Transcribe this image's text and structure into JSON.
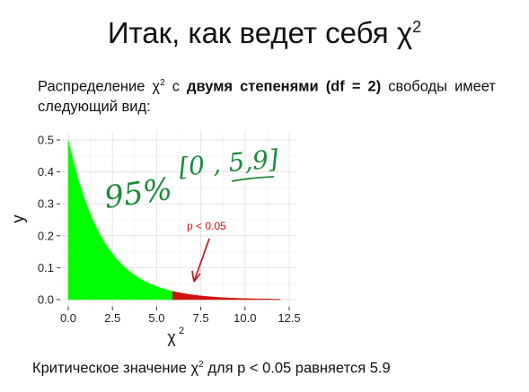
{
  "slide": {
    "title_main": "Итак, как ведет себя χ",
    "title_sup": "2",
    "para": {
      "t1": "Распределение χ",
      "sup": "2",
      "t2": " с ",
      "bold1": "двумя степенями (df  = 2)",
      "t3": " свободы имеет следующий вид:"
    },
    "footer": {
      "t1": "Критическое значение χ",
      "sup": "2",
      "t2": " для p < 0.05 равняется 5.9"
    }
  },
  "chart_data": {
    "type": "area",
    "xlabel": "χ",
    "xlabel_sup": "2",
    "ylabel": "y",
    "xlim": [
      0,
      12.5
    ],
    "ylim": [
      0,
      0.5
    ],
    "x_ticks": [
      0.0,
      2.5,
      5.0,
      7.5,
      10.0,
      12.5
    ],
    "x_tick_labels": [
      "0.0",
      "2.5",
      "5.0",
      "7.5",
      "10.0",
      "12.5"
    ],
    "y_ticks": [
      0.0,
      0.1,
      0.2,
      0.3,
      0.4,
      0.5
    ],
    "y_tick_labels": [
      "0.0",
      "0.1",
      "0.2",
      "0.3",
      "0.4",
      "0.5"
    ],
    "density": "chi-square, df = 2: y = 0.5·exp(−x/2)",
    "x": [
      0,
      1,
      2,
      3,
      4,
      5,
      5.9,
      6,
      7,
      8,
      9,
      10,
      11,
      12
    ],
    "y": [
      0.5,
      0.303,
      0.184,
      0.112,
      0.068,
      0.041,
      0.026,
      0.025,
      0.015,
      0.009,
      0.006,
      0.003,
      0.002,
      0.001
    ],
    "series": [
      {
        "name": "",
        "from": 0,
        "to": 5.9,
        "color": "#00ff00"
      },
      {
        "name": "",
        "from": 5.9,
        "to": 12.0,
        "color": "#cc1111"
      }
    ],
    "annotations": {
      "p_label": "p < 0.05",
      "handwriting_pct": "95%",
      "handwriting_interval": "[0 , 5,9]",
      "p_label_color": "#cc1111",
      "handwriting_color": "#1a8a3a"
    },
    "grid": true
  }
}
